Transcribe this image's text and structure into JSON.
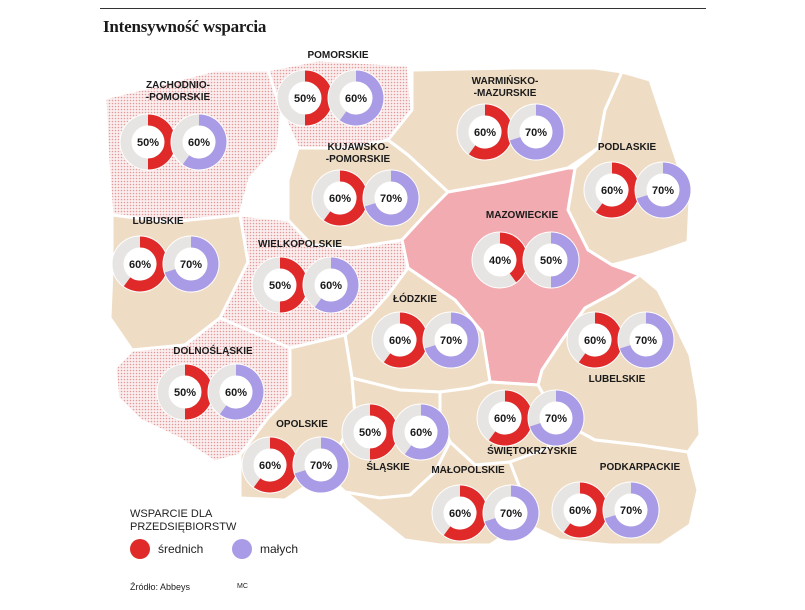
{
  "title": "Intensywność wsparcia",
  "legend": {
    "title_line1": "WSPARCIE DLA",
    "title_line2": "PRZEDSIĘBIORSTW",
    "medium_label": "średnich",
    "small_label": "małych"
  },
  "source": "Źródło: Abbeys",
  "credit": "MC",
  "colors": {
    "medium": "#e02a2a",
    "small": "#a99be6",
    "ring_bg": "#e7e5e3",
    "region_beige": "#efdcc4",
    "region_pink": "#f2abb0",
    "region_dots": "#e8a0a0"
  },
  "chart_data": {
    "type": "donut-map",
    "title": "Intensywność wsparcia",
    "unit": "%",
    "series": [
      {
        "name": "średnich",
        "key": "medium"
      },
      {
        "name": "małych",
        "key": "small"
      }
    ],
    "regions": [
      {
        "name": "ZACHODNIO-\n-POMORSKIE",
        "medium": 50,
        "small": 60
      },
      {
        "name": "POMORSKIE",
        "medium": 50,
        "small": 60
      },
      {
        "name": "WARMIŃSKO-\n-MAZURSKIE",
        "medium": 60,
        "small": 70
      },
      {
        "name": "PODLASKIE",
        "medium": 60,
        "small": 70
      },
      {
        "name": "KUJAWSKO-\n-POMORSKIE",
        "medium": 60,
        "small": 70
      },
      {
        "name": "MAZOWIECKIE",
        "medium": 40,
        "small": 50
      },
      {
        "name": "LUBUSKIE",
        "medium": 60,
        "small": 70
      },
      {
        "name": "WIELKOPOLSKIE",
        "medium": 50,
        "small": 60
      },
      {
        "name": "ŁÓDZKIE",
        "medium": 60,
        "small": 70
      },
      {
        "name": "LUBELSKIE",
        "medium": 60,
        "small": 70
      },
      {
        "name": "DOLNOŚLĄSKIE",
        "medium": 50,
        "small": 60
      },
      {
        "name": "ŚWIĘTOKRZYSKIE",
        "medium": 60,
        "small": 70
      },
      {
        "name": "OPOLSKIE",
        "medium": 60,
        "small": 70
      },
      {
        "name": "ŚLĄSKIE",
        "medium": 50,
        "small": 60
      },
      {
        "name": "MAŁOPOLSKIE",
        "medium": 60,
        "small": 70
      },
      {
        "name": "PODKARPACKIE",
        "medium": 60,
        "small": 70
      }
    ]
  }
}
